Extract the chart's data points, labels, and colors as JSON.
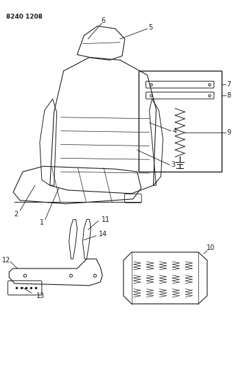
{
  "title": "8240 1208",
  "bg_color": "#ffffff",
  "line_color": "#1a1a1a",
  "figsize": [
    3.41,
    5.33
  ],
  "dpi": 100
}
